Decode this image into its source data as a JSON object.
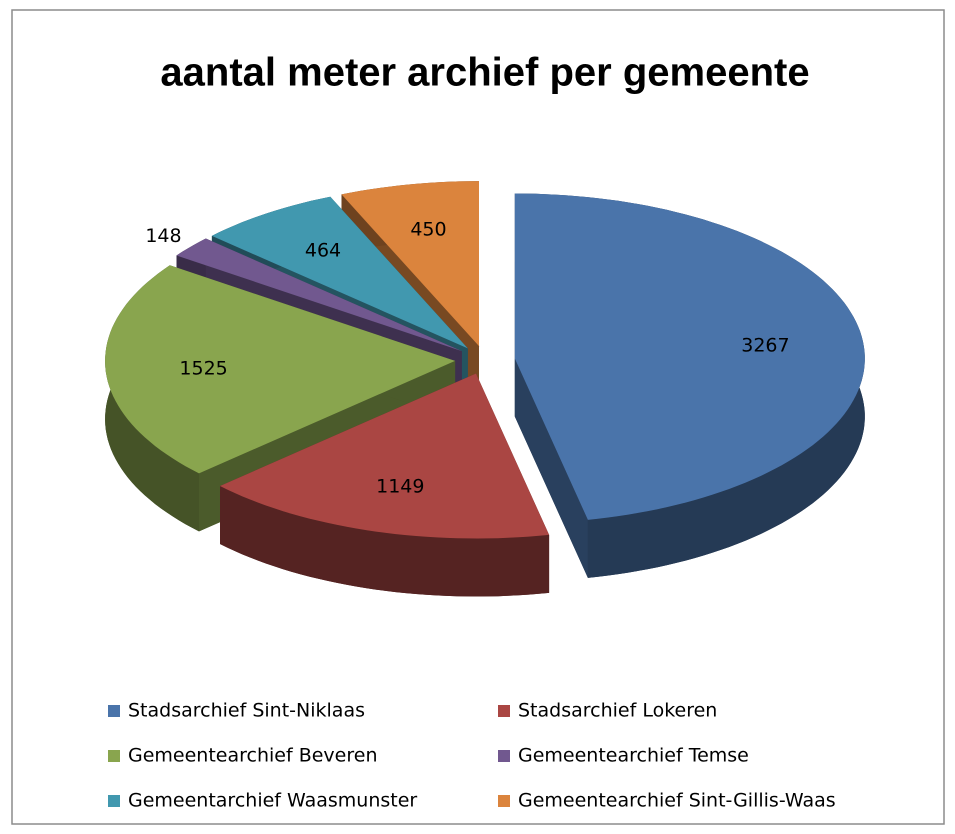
{
  "chart_data": {
    "type": "pie3d",
    "title": "aantal meter archief per gemeente",
    "categories": [
      "Stadsarchief Sint-Niklaas",
      "Stadsarchief Lokeren",
      "Gemeentearchief Beveren",
      "Gemeentearchief Temse",
      "Gemeentarchief Waasmunster",
      "Gemeentearchief Sint-Gillis-Waas"
    ],
    "values": [
      3267,
      1149,
      1525,
      148,
      464,
      450
    ],
    "colors": [
      "#4a74aa",
      "#aa4643",
      "#89a54e",
      "#71588f",
      "#4198af",
      "#db843d"
    ],
    "legend": "bottom"
  }
}
